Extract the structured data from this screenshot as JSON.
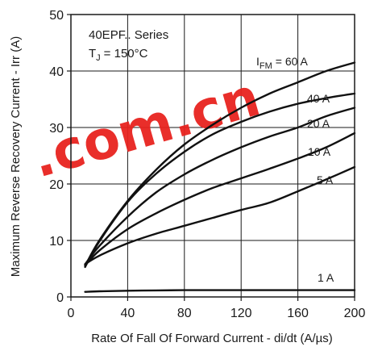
{
  "chart_data": {
    "type": "line",
    "title": "",
    "xlabel": "Rate Of Fall Of Forward Current - di/dt (A/µs)",
    "ylabel": "Maximum Reverse Recovery Current - Irr (A)",
    "xlim": [
      0,
      200
    ],
    "ylim": [
      0,
      50
    ],
    "xticks": [
      "0",
      "40",
      "80",
      "120",
      "160",
      "200"
    ],
    "yticks": [
      "0",
      "10",
      "20",
      "30",
      "40",
      "50"
    ],
    "grid": true,
    "annotations": {
      "series_name": "40EPF.. Series",
      "condition": "T",
      "condition_sub": "J",
      "condition_value": "= 150°C",
      "param_prefix": "I",
      "param_sub": "FM"
    },
    "series": [
      {
        "name": "= 60 A",
        "x": [
          10,
          20,
          40,
          60,
          80,
          100,
          120,
          140,
          160,
          180,
          200
        ],
        "y": [
          5.5,
          10,
          17,
          22.5,
          27,
          30.5,
          33.5,
          36,
          38,
          40,
          41.5
        ]
      },
      {
        "name": "40 A",
        "x": [
          10,
          20,
          40,
          60,
          80,
          100,
          120,
          140,
          160,
          180,
          200
        ],
        "y": [
          5.3,
          9.8,
          16.8,
          21.8,
          25.7,
          28.8,
          31,
          32.8,
          34.2,
          35.2,
          36
        ]
      },
      {
        "name": "20 A",
        "x": [
          10,
          20,
          40,
          60,
          80,
          100,
          120,
          140,
          160,
          180,
          200
        ],
        "y": [
          5.8,
          9,
          14.2,
          18.5,
          21.7,
          24.3,
          26.5,
          28.4,
          30,
          32,
          33.5
        ]
      },
      {
        "name": "10 A",
        "x": [
          10,
          20,
          40,
          60,
          80,
          100,
          120,
          140,
          160,
          180,
          200
        ],
        "y": [
          5.6,
          8.2,
          12,
          14.8,
          17.2,
          19.3,
          21,
          22.7,
          24.5,
          26.5,
          29
        ]
      },
      {
        "name": "5 A",
        "x": [
          10,
          20,
          40,
          60,
          80,
          100,
          120,
          140,
          160,
          180,
          200
        ],
        "y": [
          5.8,
          7.3,
          9.5,
          11.2,
          12.6,
          14,
          15.4,
          16.7,
          18.7,
          20.8,
          23
        ]
      },
      {
        "name": "1 A",
        "x": [
          10,
          20,
          40,
          60,
          80,
          100,
          120,
          140,
          160,
          180,
          200
        ],
        "y": [
          0.9,
          1,
          1.1,
          1.15,
          1.2,
          1.2,
          1.2,
          1.2,
          1.2,
          1.2,
          1.2
        ]
      }
    ]
  },
  "watermark": {
    "text": ".com.cn",
    "color": "#e8231f"
  }
}
